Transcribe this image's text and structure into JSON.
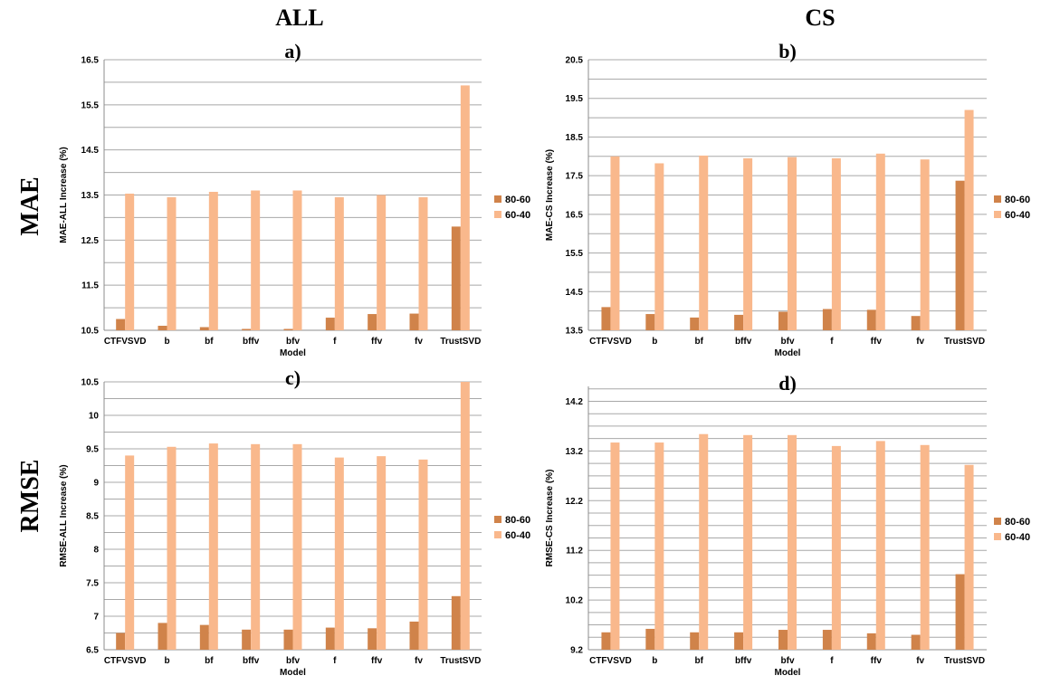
{
  "headers": {
    "columns": [
      "ALL",
      "CS"
    ],
    "rows": [
      "MAE",
      "RMSE"
    ]
  },
  "colors": {
    "s1": "#d0834a",
    "s2": "#f9b88c"
  },
  "chart_data": [
    {
      "type": "bar",
      "title": "a)",
      "xlabel": "Model",
      "ylabel": "MAE-ALL Increase (%)",
      "ylim": [
        10.5,
        16.5
      ],
      "ystep": 0.5,
      "yticks": [
        "10.5",
        "11.5",
        "12.5",
        "13.5",
        "14.5",
        "15.5",
        "16.5"
      ],
      "grid": true,
      "legend": "right",
      "categories": [
        "CTFVSVD",
        "b",
        "bf",
        "bffv",
        "bfv",
        "f",
        "ffv",
        "fv",
        "TrustSVD"
      ],
      "series": [
        {
          "name": "80-60",
          "values": [
            10.75,
            10.6,
            10.57,
            10.53,
            10.53,
            10.78,
            10.86,
            10.87,
            12.8
          ]
        },
        {
          "name": "60-40",
          "values": [
            13.53,
            13.45,
            13.57,
            13.6,
            13.6,
            13.45,
            13.5,
            13.45,
            15.93
          ]
        }
      ]
    },
    {
      "type": "bar",
      "title": "b)",
      "xlabel": "Model",
      "ylabel": "MAE-CS Increase (%)",
      "ylim": [
        13.5,
        20.5
      ],
      "ystep": 0.5,
      "yticks": [
        "13.5",
        "14.5",
        "15.5",
        "16.5",
        "17.5",
        "18.5",
        "19.5",
        "20.5"
      ],
      "grid": true,
      "legend": "right",
      "categories": [
        "CTFVSVD",
        "b",
        "bf",
        "bffv",
        "bfv",
        "f",
        "ffv",
        "fv",
        "TrustSVD"
      ],
      "series": [
        {
          "name": "80-60",
          "values": [
            14.1,
            13.92,
            13.83,
            13.9,
            13.98,
            14.05,
            14.03,
            13.87,
            17.37
          ]
        },
        {
          "name": "60-40",
          "values": [
            18.0,
            17.82,
            18.02,
            17.95,
            17.98,
            17.95,
            18.07,
            17.92,
            19.2
          ]
        }
      ]
    },
    {
      "type": "bar",
      "title": "c)",
      "xlabel": "Model",
      "ylabel": "RMSE-ALL Increase (%)",
      "ylim": [
        6.5,
        10.5
      ],
      "ystep": 0.25,
      "yticks": [
        "6.5",
        "7",
        "7.5",
        "8",
        "8.5",
        "9",
        "9.5",
        "10",
        "10.5"
      ],
      "grid": true,
      "legend": "right",
      "categories": [
        "CTFVSVD",
        "b",
        "bf",
        "bffv",
        "bfv",
        "f",
        "ffv",
        "fv",
        "TrustSVD"
      ],
      "series": [
        {
          "name": "80-60",
          "values": [
            6.75,
            6.9,
            6.87,
            6.8,
            6.8,
            6.83,
            6.82,
            6.92,
            7.3
          ]
        },
        {
          "name": "60-40",
          "values": [
            9.4,
            9.53,
            9.58,
            9.57,
            9.57,
            9.37,
            9.39,
            9.34,
            10.5
          ]
        }
      ]
    },
    {
      "type": "bar",
      "title": "d)",
      "xlabel": "Model",
      "ylabel": "RMSE-CS Increase (%)",
      "ylim": [
        9.2,
        14.5
      ],
      "ystep": 0.25,
      "yticks": [
        "9.2",
        "10.2",
        "11.2",
        "12.2",
        "13.2",
        "14.2"
      ],
      "grid": true,
      "legend": "right",
      "categories": [
        "CTFVSVD",
        "b",
        "bf",
        "bffv",
        "bfv",
        "f",
        "ffv",
        "fv",
        "TrustSVD"
      ],
      "series": [
        {
          "name": "80-60",
          "values": [
            9.55,
            9.62,
            9.55,
            9.55,
            9.6,
            9.6,
            9.53,
            9.5,
            10.72
          ]
        },
        {
          "name": "60-40",
          "values": [
            13.37,
            13.37,
            13.54,
            13.52,
            13.52,
            13.3,
            13.4,
            13.32,
            12.92
          ]
        }
      ]
    }
  ]
}
